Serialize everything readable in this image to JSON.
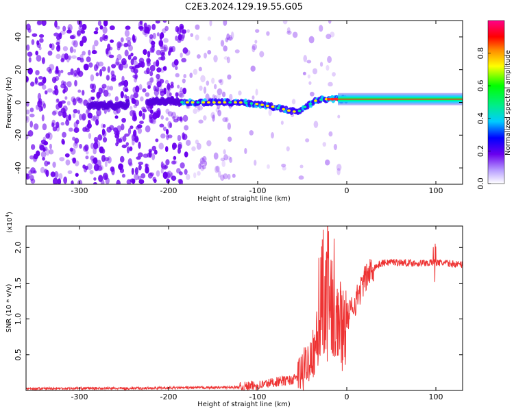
{
  "title": "C2E3.2024.129.19.55.G05",
  "colors": {
    "snr_line": "#ee3333",
    "spectro_noise": "#6a00ee",
    "frame": "#000000"
  },
  "chart_data": [
    {
      "type": "heatmap",
      "xlabel": "Height of straight line (km)",
      "ylabel": "Frequency (Hz)",
      "xlim": [
        -360,
        130
      ],
      "ylim": [
        -50,
        50
      ],
      "xticks": [
        -300,
        -200,
        -100,
        0,
        100
      ],
      "yticks": [
        -40,
        -20,
        0,
        20,
        40
      ],
      "colorbar": {
        "label": "Normalized spectral amplitude",
        "range": [
          0,
          1
        ],
        "ticks": [
          0.0,
          0.2,
          0.4,
          0.6,
          0.8
        ],
        "tick_labels": [
          "0.0",
          "0.2",
          "0.4",
          "0.6",
          "0.8"
        ]
      },
      "ridge": {
        "x": [
          -290,
          -250,
          -215,
          -180,
          -150,
          -120,
          -100,
          -80,
          -65,
          -55,
          -45,
          -35,
          -25,
          -15,
          0,
          50,
          100,
          130
        ],
        "freq": [
          -2,
          -2,
          1,
          0,
          0,
          0,
          -1,
          -3,
          -5,
          -6,
          -2,
          1,
          2,
          2,
          2,
          2,
          2,
          2
        ]
      },
      "grid": false
    },
    {
      "type": "line",
      "xlabel": "Height of straight line (km)",
      "ylabel": "SNR (10 * v/v)",
      "scale_note": "(x10",
      "scale_exp": "4",
      "scale_close": ")",
      "xlim": [
        -360,
        130
      ],
      "ylim": [
        0,
        23000
      ],
      "xticks": [
        -300,
        -200,
        -100,
        0,
        100
      ],
      "yticks": [
        5000,
        10000,
        15000,
        20000
      ],
      "ytick_labels": [
        "0.5",
        "1.0",
        "1.5",
        "2.0"
      ],
      "series": [
        {
          "x": [
            -360,
            -300,
            -250,
            -200,
            -150,
            -120,
            -100,
            -80,
            -60,
            -50,
            -40,
            -30,
            -25,
            -20,
            -15,
            -10,
            -5,
            0,
            10,
            20,
            30,
            40,
            50,
            60,
            80,
            100,
            120,
            130
          ],
          "y": [
            250,
            300,
            280,
            350,
            400,
            450,
            700,
            1200,
            1500,
            2500,
            5000,
            8000,
            12000,
            14000,
            12000,
            10000,
            9000,
            10000,
            12500,
            15500,
            17200,
            17800,
            18000,
            17900,
            17800,
            17900,
            17700,
            17600
          ]
        }
      ],
      "grid": false
    }
  ]
}
